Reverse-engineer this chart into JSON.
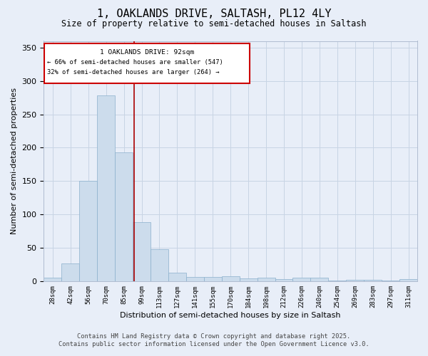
{
  "title_line1": "1, OAKLANDS DRIVE, SALTASH, PL12 4LY",
  "title_line2": "Size of property relative to semi-detached houses in Saltash",
  "xlabel": "Distribution of semi-detached houses by size in Saltash",
  "ylabel": "Number of semi-detached properties",
  "bin_labels": [
    "28sqm",
    "42sqm",
    "56sqm",
    "70sqm",
    "85sqm",
    "99sqm",
    "113sqm",
    "127sqm",
    "141sqm",
    "155sqm",
    "170sqm",
    "184sqm",
    "198sqm",
    "212sqm",
    "226sqm",
    "240sqm",
    "254sqm",
    "269sqm",
    "283sqm",
    "297sqm",
    "311sqm"
  ],
  "bin_edges": [
    21,
    35,
    49,
    63,
    77,
    91,
    105,
    119,
    133,
    147,
    161,
    175,
    189,
    203,
    217,
    231,
    245,
    259,
    273,
    287,
    301,
    315
  ],
  "bar_heights": [
    5,
    27,
    150,
    278,
    193,
    88,
    48,
    13,
    6,
    6,
    7,
    4,
    5,
    3,
    5,
    5,
    1,
    2,
    2,
    1,
    3
  ],
  "bar_color": "#ccdcec",
  "bar_edge_color": "#8ab0cc",
  "property_size": 92,
  "vline_color": "#aa0000",
  "annotation_box_color": "#cc0000",
  "annotation_text_line1": "1 OAKLANDS DRIVE: 92sqm",
  "annotation_text_line2": "← 66% of semi-detached houses are smaller (547)",
  "annotation_text_line3": "32% of semi-detached houses are larger (264) →",
  "ylim": [
    0,
    360
  ],
  "yticks": [
    0,
    50,
    100,
    150,
    200,
    250,
    300,
    350
  ],
  "grid_color": "#c8d4e4",
  "bg_color": "#e8eef8",
  "footnote_line1": "Contains HM Land Registry data © Crown copyright and database right 2025.",
  "footnote_line2": "Contains public sector information licensed under the Open Government Licence v3.0."
}
